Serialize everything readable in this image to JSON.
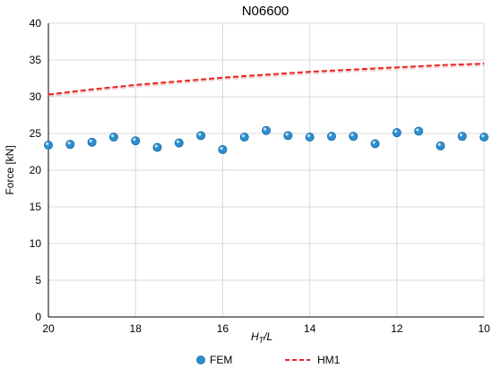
{
  "chart_data": {
    "type": "scatter",
    "title": "N06600",
    "ylabel": "Force [kN]",
    "xlabel_main": "H",
    "xlabel_sub": "T",
    "xlabel_tail": "/L",
    "xlim": [
      20,
      10
    ],
    "ylim": [
      0,
      40
    ],
    "x_ticks": [
      20,
      18,
      16,
      14,
      12,
      10
    ],
    "y_ticks": [
      0,
      5,
      10,
      15,
      20,
      25,
      30,
      35,
      40
    ],
    "grid": true,
    "legend_position": "bottom",
    "series": [
      {
        "name": "FEM",
        "kind": "markers",
        "color": "#2a8fd0",
        "x": [
          20,
          19.5,
          19,
          18.5,
          18,
          17.5,
          17,
          16.5,
          16,
          15.5,
          15,
          14.5,
          14,
          13.5,
          13,
          12.5,
          12,
          11.5,
          11,
          10.5,
          10
        ],
        "y": [
          23.4,
          23.5,
          23.8,
          24.5,
          24.0,
          23.1,
          23.7,
          24.7,
          22.8,
          24.5,
          25.4,
          24.7,
          24.5,
          24.6,
          24.6,
          23.6,
          25.1,
          25.3,
          23.3,
          24.6,
          24.5
        ]
      },
      {
        "name": "HM1",
        "kind": "dashed-line",
        "color": "#e8261f",
        "x": [
          20,
          19,
          18,
          17,
          16,
          15,
          14,
          13,
          12,
          11,
          10
        ],
        "y": [
          30.3,
          31.0,
          31.6,
          32.1,
          32.6,
          33.0,
          33.4,
          33.7,
          34.0,
          34.3,
          34.5
        ]
      }
    ]
  }
}
